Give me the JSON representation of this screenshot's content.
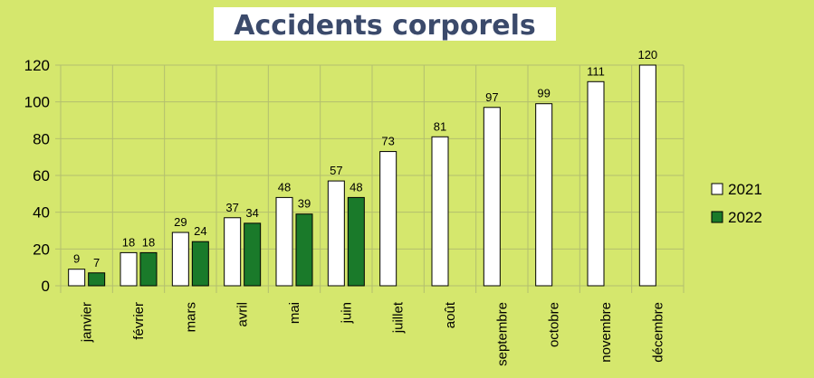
{
  "chart_data": {
    "type": "bar",
    "title": "Accidents corporels",
    "categories": [
      "janvier",
      "février",
      "mars",
      "avril",
      "mai",
      "juin",
      "juillet",
      "août",
      "septembre",
      "octobre",
      "novembre",
      "décembre"
    ],
    "series": [
      {
        "name": "2021",
        "color": "#ffffff",
        "values": [
          9,
          18,
          29,
          37,
          48,
          57,
          73,
          81,
          97,
          99,
          111,
          120
        ]
      },
      {
        "name": "2022",
        "color": "#1a7a2a",
        "values": [
          7,
          18,
          24,
          34,
          39,
          48,
          null,
          null,
          null,
          null,
          null,
          null
        ]
      }
    ],
    "ylim": [
      0,
      120
    ],
    "yticks": [
      0,
      20,
      40,
      60,
      80,
      100,
      120
    ],
    "grid": true,
    "legend": "right"
  }
}
